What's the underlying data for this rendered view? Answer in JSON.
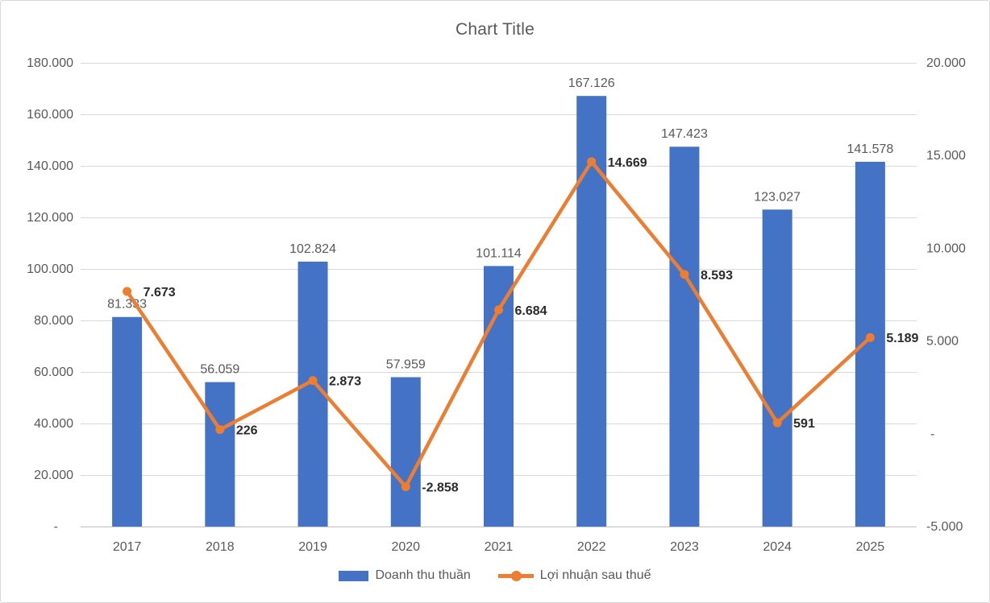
{
  "title": "Chart Title",
  "legend": [
    {
      "label": "Doanh thu thuần"
    },
    {
      "label": "Lợi nhuận sau thuế"
    }
  ],
  "colors": {
    "bar": "#4472C4",
    "line": "#ED7D31",
    "gridline": "#D9D9D9",
    "axis_line": "#BFBFBF",
    "axis_text": "#595959",
    "bar_label": "#595959",
    "line_label": "#2B2B2B",
    "title_text": "#595959"
  },
  "chart_data": {
    "type": "bar+line combo",
    "title": "Chart Title",
    "categories": [
      "2017",
      "2018",
      "2019",
      "2020",
      "2021",
      "2022",
      "2023",
      "2024",
      "2025"
    ],
    "series": [
      {
        "name": "Doanh thu thuần",
        "type": "bar",
        "axis": "left",
        "color": "#4472C4",
        "values": [
          81333,
          56059,
          102824,
          57959,
          101114,
          167126,
          147423,
          123027,
          141578
        ],
        "labels": [
          "81.333",
          "56.059",
          "102.824",
          "57.959",
          "101.114",
          "167.126",
          "147.423",
          "123.027",
          "141.578"
        ]
      },
      {
        "name": "Lợi nhuận sau thuế",
        "type": "line",
        "axis": "right",
        "color": "#ED7D31",
        "values": [
          7673,
          226,
          2873,
          -2858,
          6684,
          14669,
          8593,
          591,
          5189
        ],
        "labels": [
          "7.673",
          "226",
          "2.873",
          "-2.858",
          "6.684",
          "14.669",
          "8.593",
          "591",
          "5.189"
        ]
      }
    ],
    "left_axis": {
      "min": 0,
      "max": 180000,
      "step": 20000,
      "tick_labels_bottom_to_top": [
        "-",
        "20.000",
        "40.000",
        "60.000",
        "80.000",
        "100.000",
        "120.000",
        "140.000",
        "160.000",
        "180.000"
      ]
    },
    "right_axis": {
      "min": -5000,
      "max": 20000,
      "step": 5000,
      "tick_labels_top_to_bottom": [
        "20.000",
        "15.000",
        "10.000",
        "5.000",
        "-",
        "-5.000"
      ]
    },
    "grid": "horizontal only",
    "legend_position": "bottom"
  }
}
